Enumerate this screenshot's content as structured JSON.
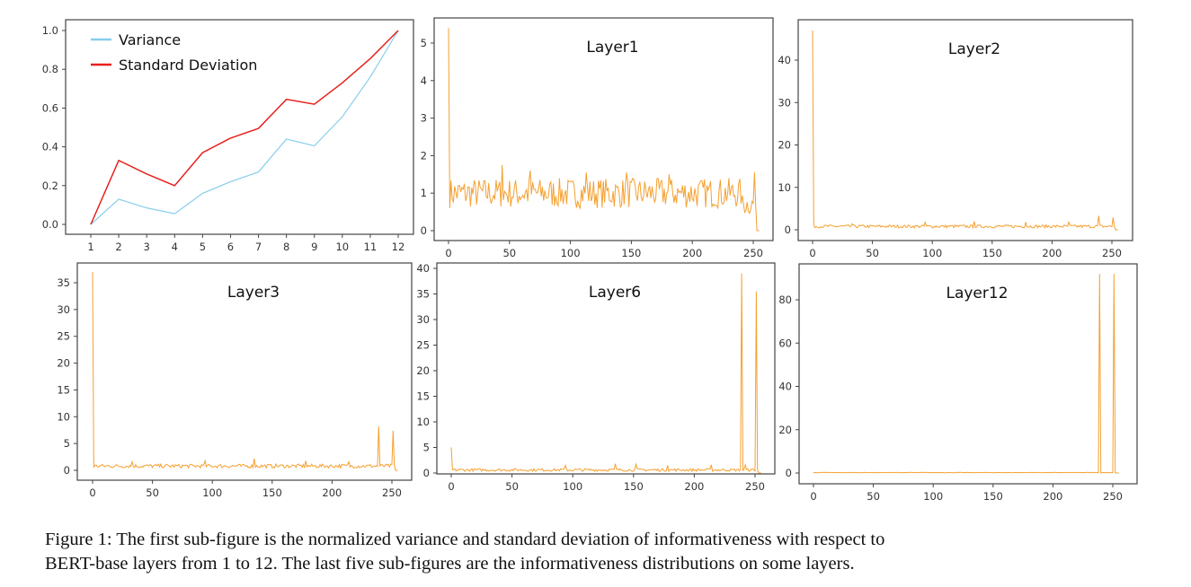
{
  "caption": {
    "line1": "Figure 1: The first sub-figure is the normalized variance and standard deviation of informativeness with respect to",
    "line2": "BERT-base layers from 1 to 12. The last five sub-figures are the informativeness distributions on some layers."
  },
  "chart_data": [
    {
      "type": "line",
      "x": [
        1,
        2,
        3,
        4,
        5,
        6,
        7,
        8,
        9,
        10,
        11,
        12
      ],
      "xticks": [
        "1",
        "2",
        "3",
        "4",
        "5",
        "6",
        "7",
        "8",
        "9",
        "10",
        "11",
        "12"
      ],
      "yticks": [
        "0.0",
        "0.2",
        "0.4",
        "0.6",
        "0.8",
        "1.0"
      ],
      "ylim": [
        0,
        1.0
      ],
      "legend": "top-left",
      "series": [
        {
          "name": "Variance",
          "color": "#87CEEB",
          "values": [
            0.0,
            0.13,
            0.085,
            0.055,
            0.16,
            0.22,
            0.27,
            0.44,
            0.405,
            0.555,
            0.76,
            1.0
          ]
        },
        {
          "name": "Standard Deviation",
          "color": "#E8201E",
          "values": [
            0.0,
            0.33,
            0.26,
            0.2,
            0.37,
            0.445,
            0.495,
            0.645,
            0.62,
            0.73,
            0.855,
            1.0
          ]
        }
      ]
    },
    {
      "type": "line",
      "title": "Layer1",
      "color": "#F5A030",
      "xlim": [
        0,
        255
      ],
      "xticks": [
        0,
        50,
        100,
        150,
        200,
        250
      ],
      "yticks": [
        0,
        1,
        2,
        3,
        4,
        5
      ],
      "ylim": [
        0,
        5.4
      ],
      "typical_level": 1.0,
      "spikes": [
        [
          0,
          5.4
        ],
        [
          44,
          1.75
        ],
        [
          67,
          1.6
        ],
        [
          113,
          1.55
        ],
        [
          146,
          1.55
        ],
        [
          181,
          1.5
        ],
        [
          251,
          1.55
        ],
        [
          253,
          0
        ],
        [
          254,
          0
        ],
        [
          255,
          0
        ]
      ]
    },
    {
      "type": "line",
      "title": "Layer2",
      "color": "#F5A030",
      "xlim": [
        0,
        255
      ],
      "xticks": [
        0,
        50,
        100,
        150,
        200,
        250
      ],
      "yticks": [
        0,
        10,
        20,
        30,
        40
      ],
      "ylim": [
        0,
        47
      ],
      "typical_level": 0.8,
      "spikes": [
        [
          0,
          47
        ],
        [
          33,
          1.4
        ],
        [
          94,
          1.8
        ],
        [
          135,
          2.0
        ],
        [
          178,
          1.8
        ],
        [
          214,
          1.8
        ],
        [
          239,
          3.3
        ],
        [
          251,
          2.9
        ],
        [
          253,
          0
        ],
        [
          254,
          0
        ],
        [
          255,
          0
        ]
      ]
    },
    {
      "type": "line",
      "title": "Layer3",
      "color": "#F5A030",
      "xlim": [
        0,
        255
      ],
      "xticks": [
        0,
        50,
        100,
        150,
        200,
        250
      ],
      "yticks": [
        0,
        5,
        10,
        15,
        20,
        25,
        30,
        35
      ],
      "ylim": [
        0,
        37
      ],
      "typical_level": 0.8,
      "spikes": [
        [
          0,
          37
        ],
        [
          33,
          1.6
        ],
        [
          94,
          1.8
        ],
        [
          135,
          2.2
        ],
        [
          178,
          1.8
        ],
        [
          214,
          1.6
        ],
        [
          239,
          8.2
        ],
        [
          251,
          7.4
        ],
        [
          253,
          0
        ],
        [
          254,
          0
        ],
        [
          255,
          0
        ]
      ]
    },
    {
      "type": "line",
      "title": "Layer6",
      "color": "#F5A030",
      "xlim": [
        0,
        255
      ],
      "xticks": [
        0,
        50,
        100,
        150,
        200,
        250
      ],
      "yticks": [
        0,
        5,
        10,
        15,
        20,
        25,
        30,
        35,
        40
      ],
      "ylim": [
        0,
        39
      ],
      "typical_level": 0.6,
      "spikes": [
        [
          0,
          5
        ],
        [
          94,
          1.5
        ],
        [
          135,
          1.8
        ],
        [
          152,
          1.7
        ],
        [
          178,
          1.5
        ],
        [
          214,
          1.6
        ],
        [
          239,
          39
        ],
        [
          242,
          1.6
        ],
        [
          251,
          35.5
        ],
        [
          253,
          0
        ],
        [
          254,
          0
        ],
        [
          255,
          0
        ]
      ]
    },
    {
      "type": "line",
      "title": "Layer12",
      "color": "#F5A030",
      "xlim": [
        0,
        255
      ],
      "xticks": [
        0,
        50,
        100,
        150,
        200,
        250
      ],
      "yticks": [
        0,
        20,
        40,
        60,
        80
      ],
      "ylim": [
        0,
        92
      ],
      "typical_level": 0.2,
      "spikes": [
        [
          239,
          92
        ],
        [
          240,
          0
        ],
        [
          251,
          92
        ],
        [
          253,
          0
        ],
        [
          254,
          0
        ],
        [
          255,
          0
        ]
      ]
    }
  ]
}
